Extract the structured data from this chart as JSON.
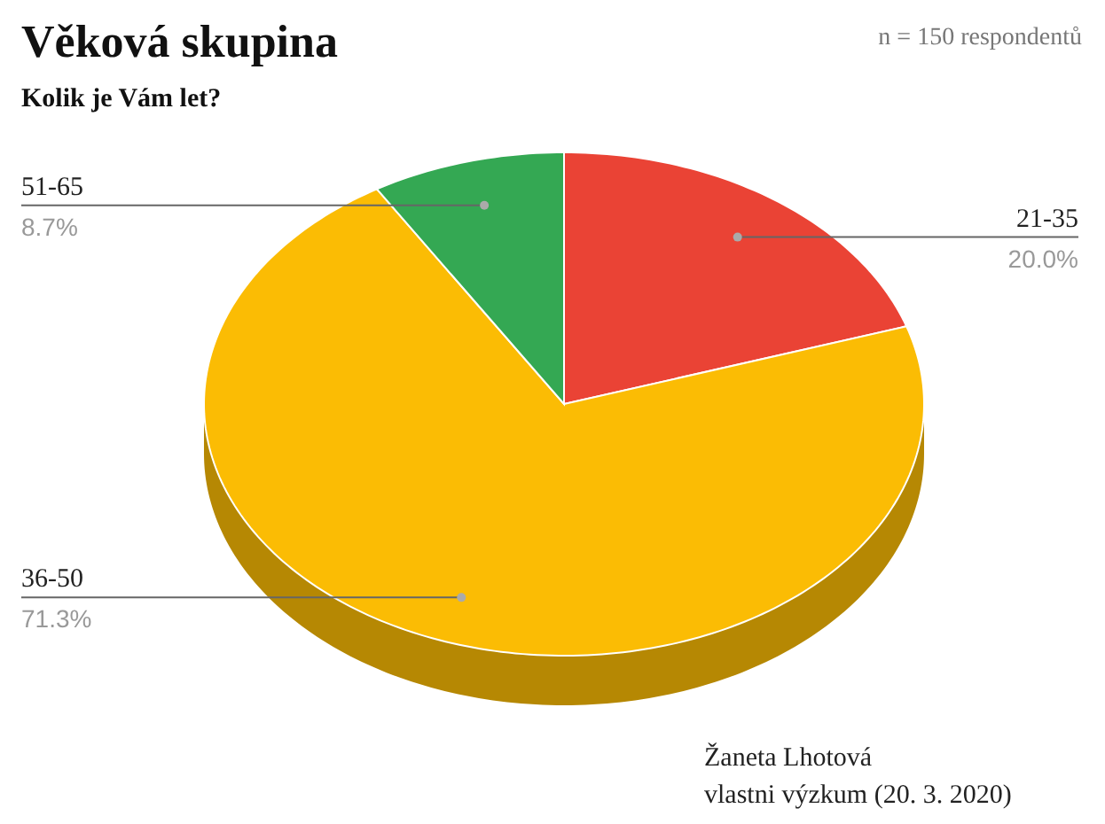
{
  "chart_data": {
    "type": "pie",
    "title": "Věková skupina",
    "subtitle": "Kolik je Vám let?",
    "categories": [
      "21-35",
      "36-50",
      "51-65"
    ],
    "values": [
      20.0,
      71.3,
      8.7
    ],
    "value_labels": [
      "20.0%",
      "71.3%",
      "8.7%"
    ],
    "colors": [
      "#ea4335",
      "#fbbc04",
      "#34a853"
    ],
    "annotations": [
      "n = 150 respondentů",
      "Žaneta Lhotová",
      "vlastni výzkum (20. 3. 2020)"
    ]
  }
}
